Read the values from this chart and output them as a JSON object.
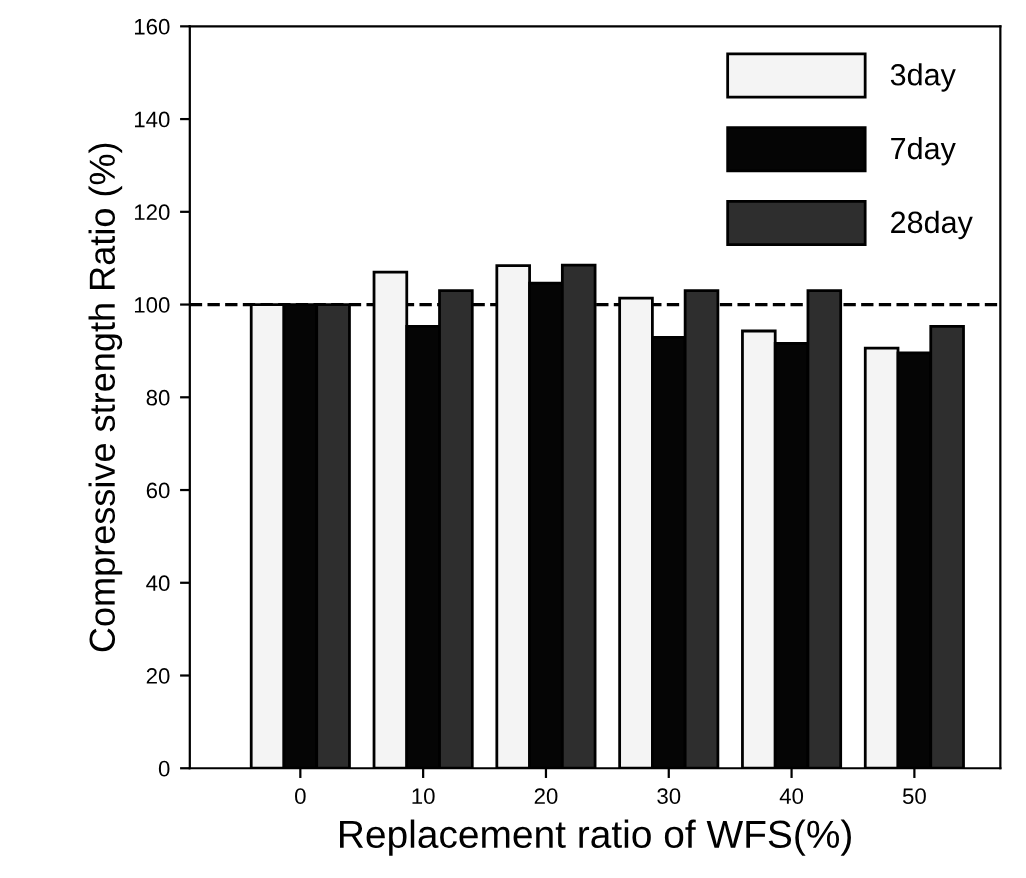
{
  "chart_data": {
    "type": "bar",
    "xlabel": "Replacement ratio of WFS(%)",
    "ylabel": "Compressive strength Ratio (%)",
    "categories": [
      "0",
      "10",
      "20",
      "30",
      "40",
      "50"
    ],
    "series": [
      {
        "name": "3day",
        "color": "#f4f4f4",
        "values": [
          100,
          107,
          108.4,
          101.4,
          94.3,
          90.6
        ]
      },
      {
        "name": "7day",
        "color": "#050505",
        "values": [
          100,
          95.3,
          104.6,
          92.9,
          91.6,
          89.6
        ]
      },
      {
        "name": "28day",
        "color": "#2e2e2e",
        "values": [
          100,
          103,
          108.5,
          103,
          103,
          95.3
        ]
      }
    ],
    "ylim": [
      0,
      160
    ],
    "yticks": [
      0,
      20,
      40,
      60,
      80,
      100,
      120,
      140,
      160
    ],
    "ref_lines": [
      {
        "axis": "y",
        "value": 100,
        "line_style": "dashed",
        "color": "#000000"
      }
    ],
    "grid": false,
    "legend": "top right"
  }
}
